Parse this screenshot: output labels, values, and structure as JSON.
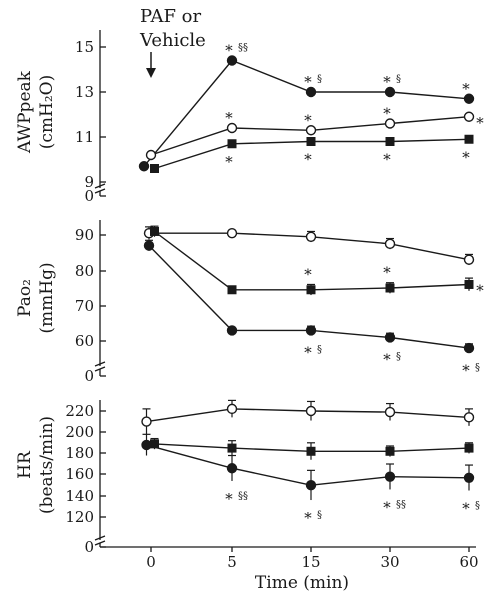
{
  "chart_data": {
    "type": "line",
    "x_ticks": [
      "0",
      "5",
      "15",
      "30",
      "60"
    ],
    "x_label": "Time  (min)",
    "annotation": {
      "line1": "PAF or",
      "line2": "Vehicle"
    },
    "panels": [
      {
        "id": "awp",
        "ylabel_lines": [
          "AWPpeak",
          "(cmH₂O)"
        ],
        "y_ticks": [
          "15",
          "13",
          "11",
          "9"
        ],
        "y_tick_values": [
          15,
          13,
          11,
          9
        ],
        "ylim": [
          9,
          15.6
        ],
        "break_label": "0",
        "series": [
          {
            "marker": "filled-circle",
            "values": [
              9.7,
              14.4,
              13.0,
              13.0,
              12.7
            ],
            "start_time": -0.7
          },
          {
            "marker": "open-circle",
            "values": [
              10.2,
              11.4,
              11.3,
              11.6,
              11.9
            ],
            "start_time": 0
          },
          {
            "marker": "filled-square",
            "values": [
              9.6,
              10.7,
              10.8,
              10.8,
              10.9
            ],
            "start_time": 0.35
          }
        ],
        "significance": [
          {
            "x": "5",
            "text": "∗",
            "sub": "§§",
            "series": "filled-circle",
            "pos": "above"
          },
          {
            "x": "15",
            "text": "∗",
            "sub": "§",
            "series": "filled-circle",
            "pos": "above"
          },
          {
            "x": "30",
            "text": "∗",
            "sub": "§",
            "series": "filled-circle",
            "pos": "above"
          },
          {
            "x": "60",
            "text": "∗",
            "sub": "",
            "series": "filled-circle",
            "pos": "above"
          },
          {
            "x": "5",
            "text": "∗",
            "sub": "",
            "series": "open-circle",
            "pos": "above"
          },
          {
            "x": "15",
            "text": "∗",
            "sub": "",
            "series": "open-circle",
            "pos": "above"
          },
          {
            "x": "30",
            "text": "∗",
            "sub": "",
            "series": "open-circle",
            "pos": "above"
          },
          {
            "x": "60",
            "text": "∗",
            "sub": "",
            "series": "open-circle",
            "pos": "right"
          },
          {
            "x": "5",
            "text": "∗",
            "sub": "",
            "series": "filled-square",
            "pos": "below"
          },
          {
            "x": "15",
            "text": "∗",
            "sub": "",
            "series": "filled-square",
            "pos": "below"
          },
          {
            "x": "30",
            "text": "∗",
            "sub": "",
            "series": "filled-square",
            "pos": "below"
          },
          {
            "x": "60",
            "text": "∗",
            "sub": "",
            "series": "filled-square",
            "pos": "below"
          }
        ]
      },
      {
        "id": "pao2",
        "ylabel_lines": [
          "Pao₂",
          "(mmHg)"
        ],
        "y_ticks": [
          "90",
          "80",
          "70",
          "60"
        ],
        "y_tick_values": [
          90,
          80,
          70,
          60
        ],
        "ylim": [
          52,
          93
        ],
        "break_label": "0",
        "series": [
          {
            "marker": "open-circle",
            "values": [
              90.5,
              90.5,
              89.5,
              87.5,
              83
            ],
            "start_time": -0.2,
            "err": [
              1.8,
              0,
              1.5,
              1.5,
              1.5
            ]
          },
          {
            "marker": "filled-square",
            "values": [
              91,
              74.5,
              74.5,
              75,
              76
            ],
            "start_time": 0.35,
            "err": [
              1.5,
              0,
              1.5,
              1.5,
              1.8
            ]
          },
          {
            "marker": "filled-circle",
            "values": [
              87,
              63,
              63,
              61,
              58
            ],
            "start_time": -0.2,
            "err": [
              1.5,
              0,
              1.2,
              1.2,
              1.2
            ]
          }
        ],
        "significance": [
          {
            "x": "15",
            "text": "∗",
            "sub": "",
            "series": "filled-square",
            "pos": "above"
          },
          {
            "x": "30",
            "text": "∗",
            "sub": "",
            "series": "filled-square",
            "pos": "above"
          },
          {
            "x": "60",
            "text": "∗",
            "sub": "",
            "series": "filled-square",
            "pos": "right"
          },
          {
            "x": "15",
            "text": "∗",
            "sub": "§",
            "series": "filled-circle",
            "pos": "below"
          },
          {
            "x": "30",
            "text": "∗",
            "sub": "§",
            "series": "filled-circle",
            "pos": "below"
          },
          {
            "x": "60",
            "text": "∗",
            "sub": "§",
            "series": "filled-circle",
            "pos": "below"
          }
        ]
      },
      {
        "id": "hr",
        "ylabel_lines": [
          "HR",
          "(beats/min)"
        ],
        "y_ticks": [
          "220",
          "200",
          "180",
          "160",
          "140",
          "120"
        ],
        "y_tick_values": [
          220,
          200,
          180,
          160,
          140,
          120
        ],
        "ylim": [
          113,
          228
        ],
        "break_label": "0",
        "series": [
          {
            "marker": "open-circle",
            "values": [
              210,
              222,
              220,
              219,
              214
            ],
            "start_time": -0.45,
            "err": [
              12,
              8,
              9,
              8,
              8
            ]
          },
          {
            "marker": "filled-square",
            "values": [
              189,
              185,
              182,
              182,
              185
            ],
            "start_time": 0.35,
            "err": [
              5,
              7,
              8,
              5,
              5
            ]
          },
          {
            "marker": "filled-circle",
            "values": [
              188,
              166,
              150,
              158,
              157
            ],
            "start_time": -0.45,
            "err": [
              10,
              12,
              14,
              12,
              12
            ]
          }
        ],
        "significance": [
          {
            "x": "5",
            "text": "∗",
            "sub": "§§",
            "series": "filled-circle",
            "pos": "below"
          },
          {
            "x": "15",
            "text": "∗",
            "sub": "§",
            "series": "filled-circle",
            "pos": "below"
          },
          {
            "x": "30",
            "text": "∗",
            "sub": "§§",
            "series": "filled-circle",
            "pos": "below"
          },
          {
            "x": "60",
            "text": "∗",
            "sub": "§",
            "series": "filled-circle",
            "pos": "below"
          }
        ]
      }
    ]
  }
}
